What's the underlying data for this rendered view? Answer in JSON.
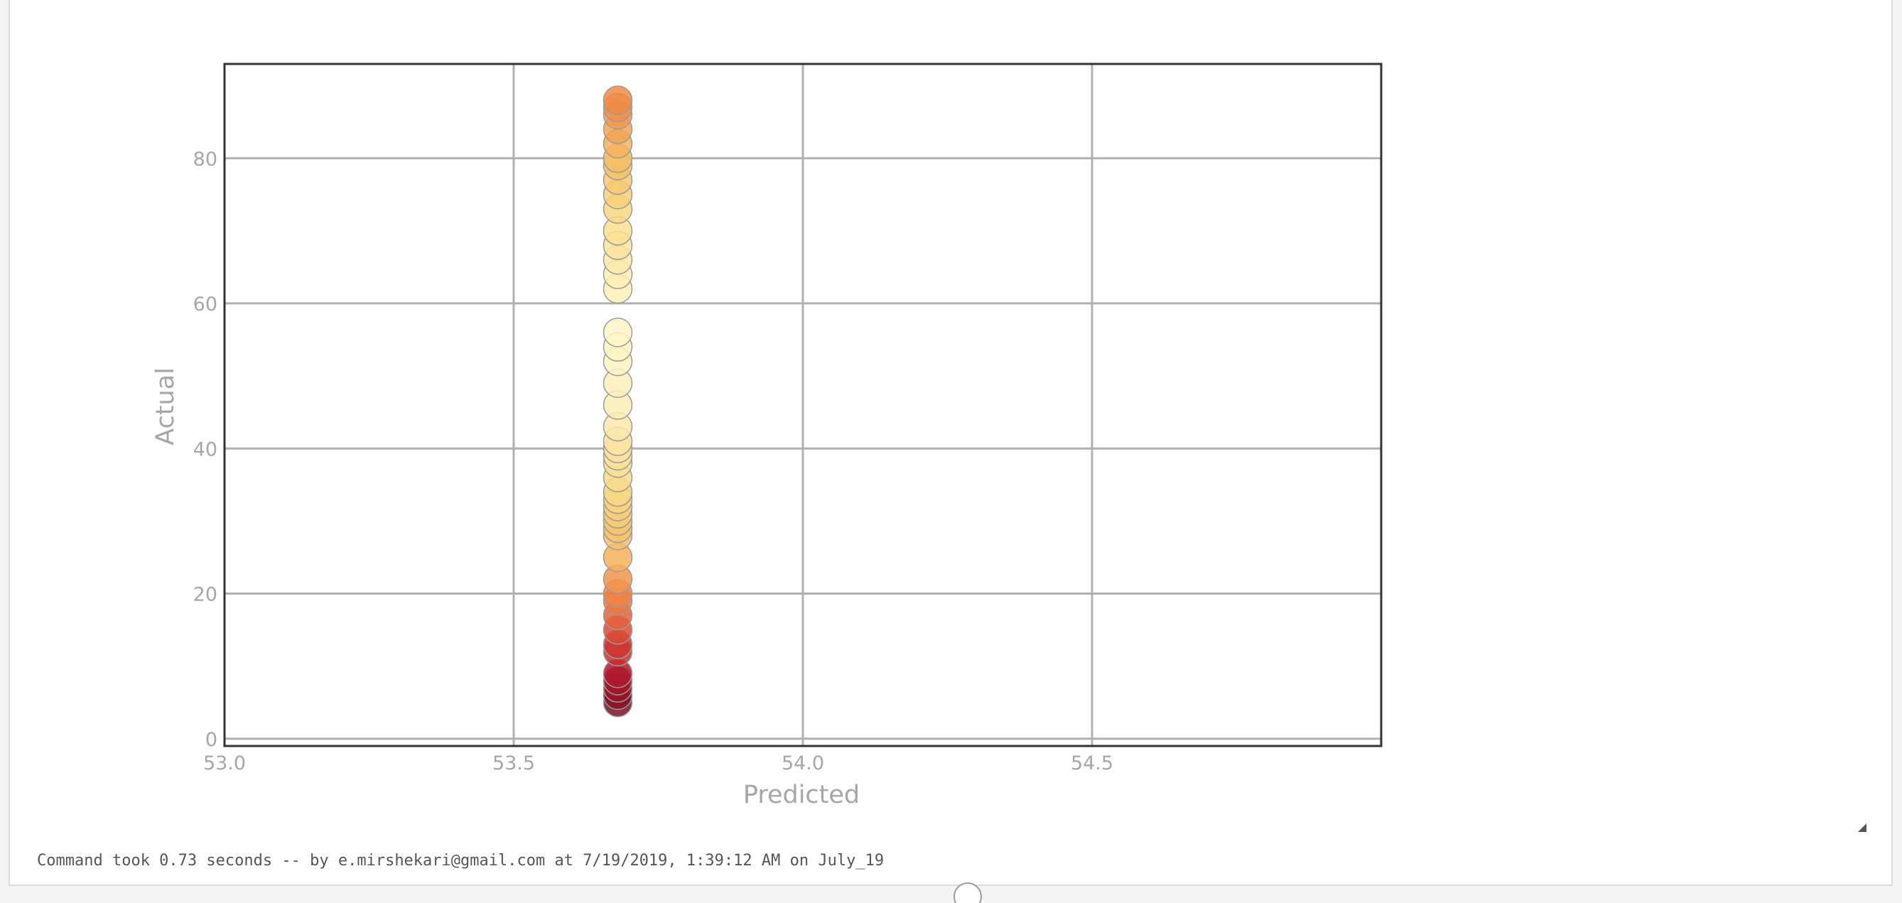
{
  "chart_data": {
    "type": "scatter",
    "xlabel": "Predicted",
    "ylabel": "Actual",
    "xlim": [
      53.0,
      55.0
    ],
    "ylim": [
      -1,
      93
    ],
    "x_ticks": [
      "53.0",
      "53.5",
      "54.0",
      "54.5"
    ],
    "y_ticks": [
      "0",
      "20",
      "40",
      "60",
      "80"
    ],
    "grid": true,
    "colormap": "YlOrRd (diverging from low and high)",
    "series": [
      {
        "x": 53.68,
        "y": [
          5,
          6,
          7,
          8,
          9,
          12,
          13,
          15,
          17,
          19,
          20,
          22,
          25,
          28,
          29,
          30,
          31,
          32,
          33,
          34,
          36,
          38,
          39,
          40,
          41,
          43,
          46,
          49,
          52,
          54,
          56,
          62,
          64,
          66,
          68,
          70,
          73,
          75,
          77,
          79,
          80,
          82,
          84,
          86,
          87,
          88
        ]
      }
    ]
  },
  "colors": {
    "axis_frame": "#333333",
    "grid": "#b0b0b0",
    "tick_text": "#a6a6a6",
    "point_edge": "#9a9a9a"
  },
  "status": {
    "command_line": "Command took 0.73 seconds -- by e.mirshekari@gmail.com at 7/19/2019, 1:39:12 AM on July_19"
  },
  "icons": {
    "resize": "resize-corner-icon",
    "toggle": "circle-toggle-icon"
  }
}
